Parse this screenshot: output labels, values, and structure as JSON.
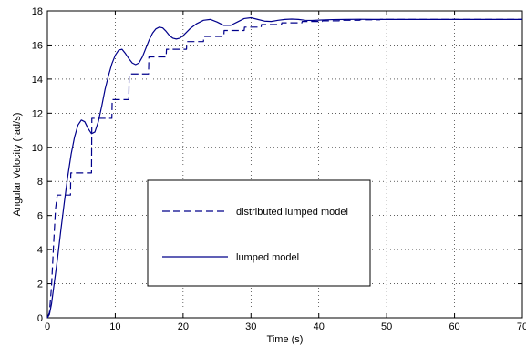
{
  "chart_data": {
    "type": "line",
    "title": "",
    "xlabel": "Time (s)",
    "ylabel": "Angular Velocity (rad/s)",
    "xlim": [
      0,
      70
    ],
    "ylim": [
      0,
      18
    ],
    "x_ticks": [
      0,
      10,
      20,
      30,
      40,
      50,
      60,
      70
    ],
    "y_ticks": [
      0,
      2,
      4,
      6,
      8,
      10,
      12,
      14,
      16,
      18
    ],
    "grid": true,
    "grid_style": "dotted",
    "legend_placement": "lower-center",
    "series": [
      {
        "name": "distributed lumped model",
        "style": "dashed",
        "color": "#00008b",
        "x": [
          0,
          0.3,
          0.6,
          0.9,
          1.2,
          1.45,
          1.5,
          3.4,
          3.45,
          6.5,
          6.55,
          9.5,
          9.55,
          12.0,
          12.05,
          14.9,
          14.95,
          17.5,
          17.55,
          20.5,
          20.55,
          23.0,
          23.05,
          26.0,
          26.05,
          29.0,
          29.05,
          31.5,
          31.55,
          34.5,
          34.55,
          37.5,
          37.55,
          40.5,
          40.55,
          43.0,
          43.05,
          46.0,
          46.05,
          49.0,
          49.05,
          55.0,
          70.0
        ],
        "y": [
          0,
          0.3,
          1.8,
          4.2,
          6.4,
          7.2,
          7.2,
          7.2,
          8.5,
          8.5,
          11.7,
          11.7,
          12.8,
          12.8,
          14.3,
          14.3,
          15.3,
          15.3,
          15.75,
          15.75,
          16.2,
          16.2,
          16.5,
          16.5,
          16.85,
          16.85,
          17.05,
          17.05,
          17.2,
          17.2,
          17.3,
          17.3,
          17.38,
          17.38,
          17.42,
          17.42,
          17.45,
          17.45,
          17.48,
          17.48,
          17.5,
          17.5,
          17.5
        ]
      },
      {
        "name": "lumped model",
        "style": "solid",
        "color": "#00008b",
        "x": [
          0,
          0.3,
          0.6,
          1.0,
          1.5,
          2.0,
          2.5,
          3.0,
          3.5,
          4.0,
          4.5,
          5.0,
          5.5,
          6.0,
          6.5,
          7.0,
          7.5,
          8.0,
          8.5,
          9.0,
          9.5,
          10.0,
          10.5,
          11.0,
          11.5,
          12.0,
          12.5,
          13.0,
          13.5,
          14.0,
          14.5,
          15.0,
          15.5,
          16.0,
          16.5,
          17.0,
          17.5,
          18.0,
          18.5,
          19.0,
          19.5,
          20.0,
          20.5,
          21.0,
          22.0,
          23.0,
          24.0,
          25.0,
          26.0,
          27.0,
          28.0,
          29.0,
          30.0,
          31.0,
          32.0,
          33.0,
          34.0,
          35.0,
          36.0,
          37.0,
          38.0,
          39.0,
          40.0,
          42.0,
          44.0,
          46.0,
          48.0,
          50.0,
          52.0,
          55.0,
          58.0,
          60.0,
          65.0,
          70.0
        ],
        "y": [
          0,
          0.2,
          0.8,
          2.0,
          3.5,
          5.2,
          6.8,
          8.3,
          9.6,
          10.6,
          11.3,
          11.6,
          11.5,
          11.1,
          10.8,
          10.9,
          11.5,
          12.4,
          13.4,
          14.2,
          14.9,
          15.4,
          15.7,
          15.75,
          15.5,
          15.2,
          14.95,
          14.85,
          14.95,
          15.3,
          15.8,
          16.3,
          16.7,
          16.95,
          17.05,
          17.0,
          16.8,
          16.55,
          16.4,
          16.35,
          16.4,
          16.55,
          16.75,
          16.95,
          17.25,
          17.45,
          17.5,
          17.35,
          17.15,
          17.15,
          17.35,
          17.55,
          17.6,
          17.5,
          17.4,
          17.38,
          17.45,
          17.5,
          17.52,
          17.5,
          17.45,
          17.44,
          17.46,
          17.49,
          17.5,
          17.51,
          17.5,
          17.5,
          17.5,
          17.5,
          17.5,
          17.5,
          17.5,
          17.5
        ]
      }
    ],
    "legend": [
      {
        "label": "distributed lumped model",
        "style": "dashed"
      },
      {
        "label": "lumped model",
        "style": "solid"
      }
    ]
  }
}
